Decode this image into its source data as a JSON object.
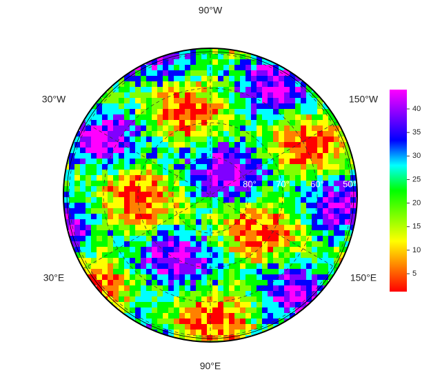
{
  "map": {
    "longitude_labels": [
      "90°W",
      "30°W",
      "150°W",
      "30°E",
      "150°E",
      "90°E"
    ],
    "latitude_labels": [
      "80°",
      "70°",
      "60°",
      "50°"
    ]
  },
  "colorbar": {
    "ylim": [
      1.2,
      44.1
    ],
    "yticks": [
      5,
      10,
      15,
      20,
      25,
      30,
      35,
      40
    ],
    "colors": [
      "#ff0000",
      "#ff8000",
      "#ffff00",
      "#80ff00",
      "#00ff00",
      "#00ffff",
      "#0000ff",
      "#8000ff",
      "#ff00ff"
    ]
  }
}
